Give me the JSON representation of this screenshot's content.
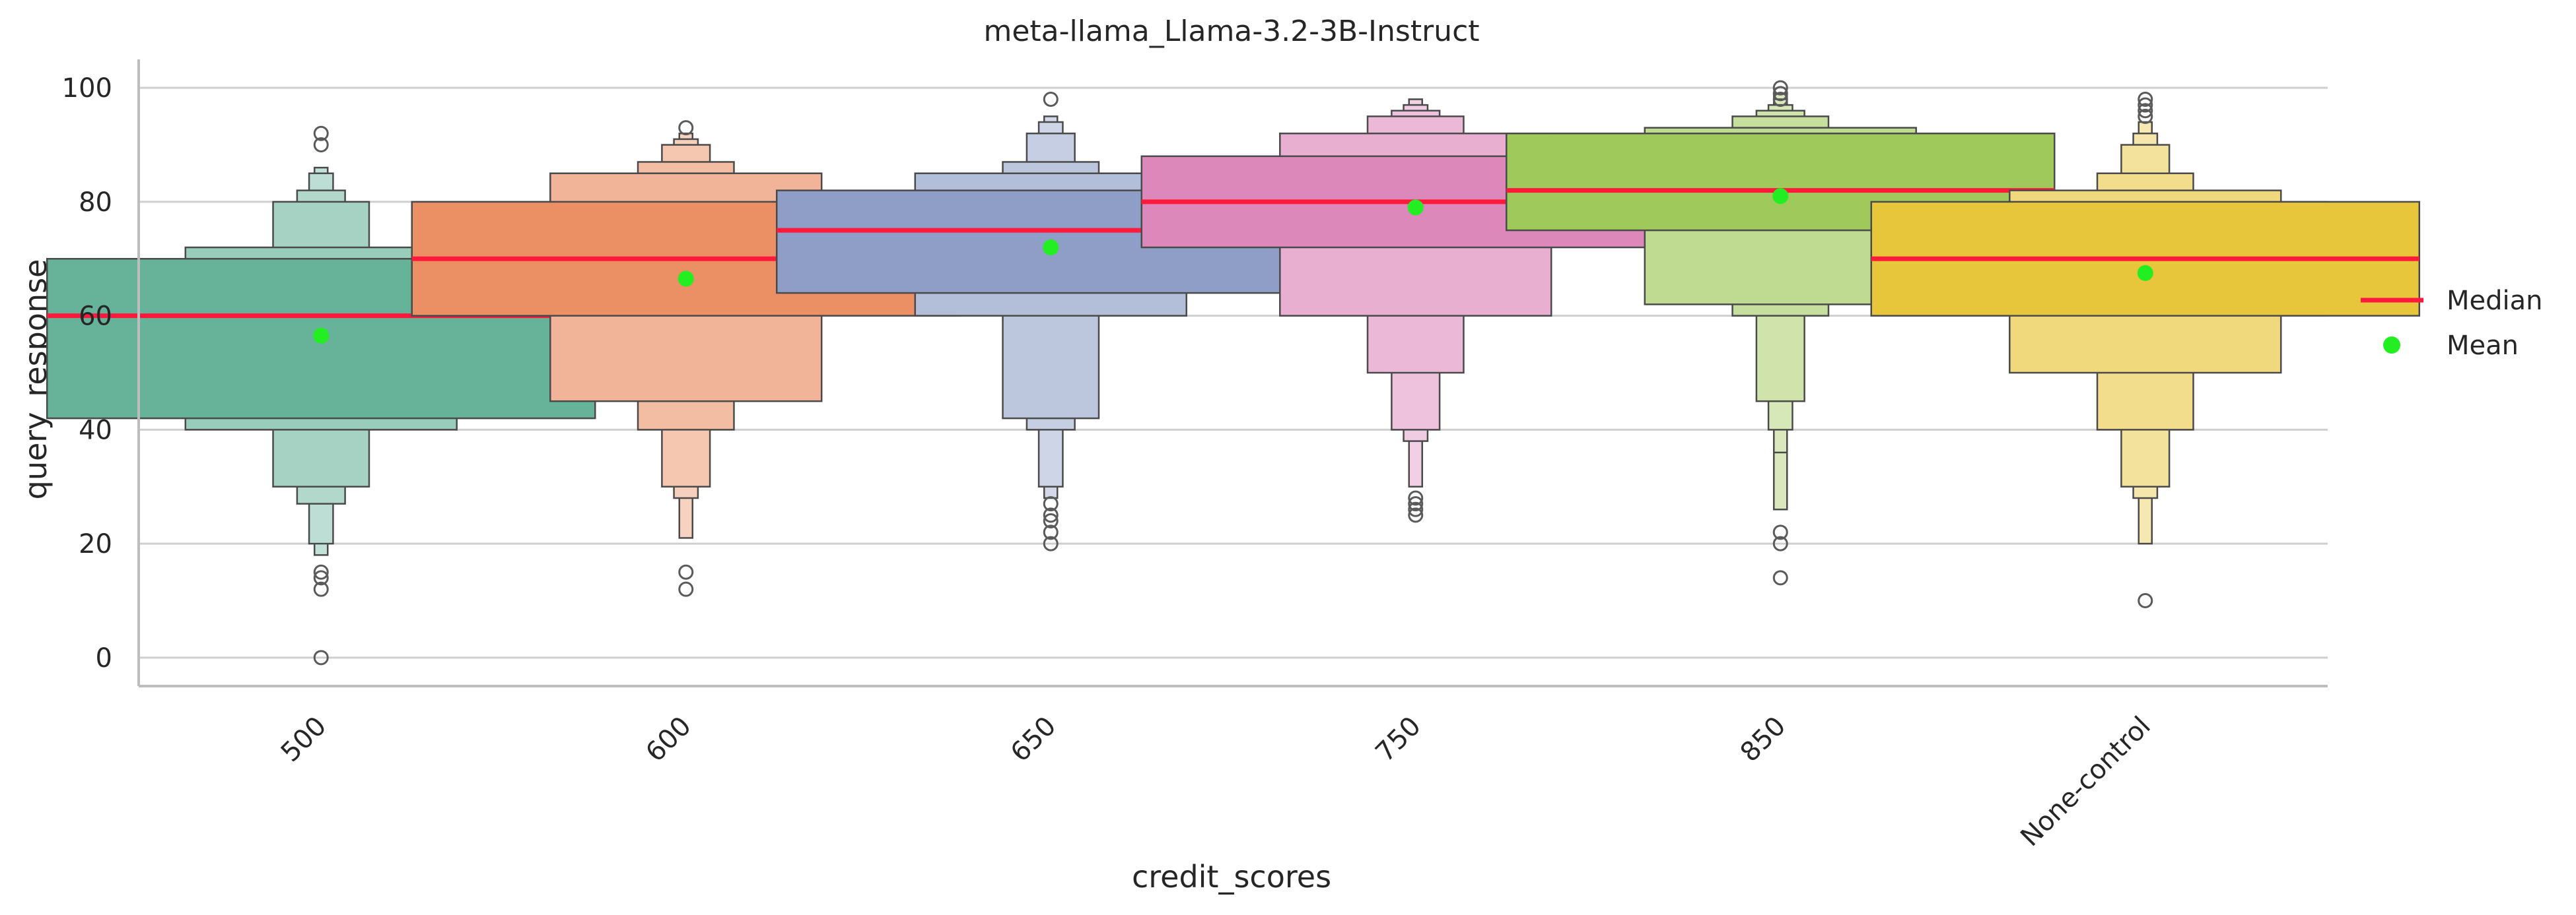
{
  "chart_data": {
    "type": "boxen",
    "title": "meta-llama_Llama-3.2-3B-Instruct",
    "xlabel": "credit_scores",
    "ylabel": "query_response",
    "ylim": [
      -5,
      105
    ],
    "yticks": [
      0,
      20,
      40,
      60,
      80,
      100
    ],
    "grid": "horizontal",
    "legend_placement": "right",
    "legend": [
      {
        "label": "Median",
        "marker": "line",
        "color": "#ff1a3c"
      },
      {
        "label": "Mean",
        "marker": "dot",
        "color": "#22ee22"
      }
    ],
    "categories": [
      "500",
      "600",
      "650",
      "750",
      "850",
      "None-control"
    ],
    "series": [
      {
        "category": "500",
        "color": "#66b39a",
        "median": 60,
        "mean": 56.5,
        "levels": [
          [
            42,
            70
          ],
          [
            40,
            72
          ],
          [
            30,
            80
          ],
          [
            27,
            82
          ],
          [
            20,
            85
          ],
          [
            18,
            86
          ]
        ],
        "outliers": [
          92,
          90,
          15,
          14,
          12,
          0
        ]
      },
      {
        "category": "600",
        "color": "#eb8f65",
        "median": 70,
        "mean": 66.5,
        "levels": [
          [
            60,
            80
          ],
          [
            45,
            85
          ],
          [
            40,
            87
          ],
          [
            30,
            90
          ],
          [
            28,
            91
          ],
          [
            21,
            92
          ]
        ],
        "outliers": [
          93,
          15,
          12
        ]
      },
      {
        "category": "650",
        "color": "#8e9ec6",
        "median": 75,
        "mean": 72,
        "levels": [
          [
            64,
            82
          ],
          [
            60,
            85
          ],
          [
            42,
            87
          ],
          [
            40,
            92
          ],
          [
            30,
            94
          ],
          [
            28,
            95
          ]
        ],
        "outliers": [
          98,
          27,
          25,
          24,
          22,
          20
        ]
      },
      {
        "category": "750",
        "color": "#dd88bb",
        "median": 80,
        "mean": 79,
        "levels": [
          [
            72,
            88
          ],
          [
            60,
            92
          ],
          [
            50,
            95
          ],
          [
            40,
            96
          ],
          [
            38,
            97
          ],
          [
            30,
            98
          ]
        ],
        "outliers": [
          28,
          27,
          26,
          25
        ]
      },
      {
        "category": "850",
        "color": "#a0c95b",
        "median": 82,
        "mean": 81,
        "levels": [
          [
            75,
            92
          ],
          [
            62,
            93
          ],
          [
            60,
            95
          ],
          [
            45,
            96
          ],
          [
            40,
            97
          ],
          [
            36,
            98
          ],
          [
            26,
            99
          ]
        ],
        "outliers": [
          100,
          99,
          98,
          22,
          20,
          14
        ]
      },
      {
        "category": "None-control",
        "color": "#e8c63c",
        "median": 70,
        "mean": 67.5,
        "levels": [
          [
            60,
            80
          ],
          [
            50,
            82
          ],
          [
            40,
            85
          ],
          [
            30,
            90
          ],
          [
            28,
            92
          ],
          [
            20,
            94
          ]
        ],
        "outliers": [
          98,
          97,
          96,
          95,
          10
        ]
      }
    ]
  }
}
